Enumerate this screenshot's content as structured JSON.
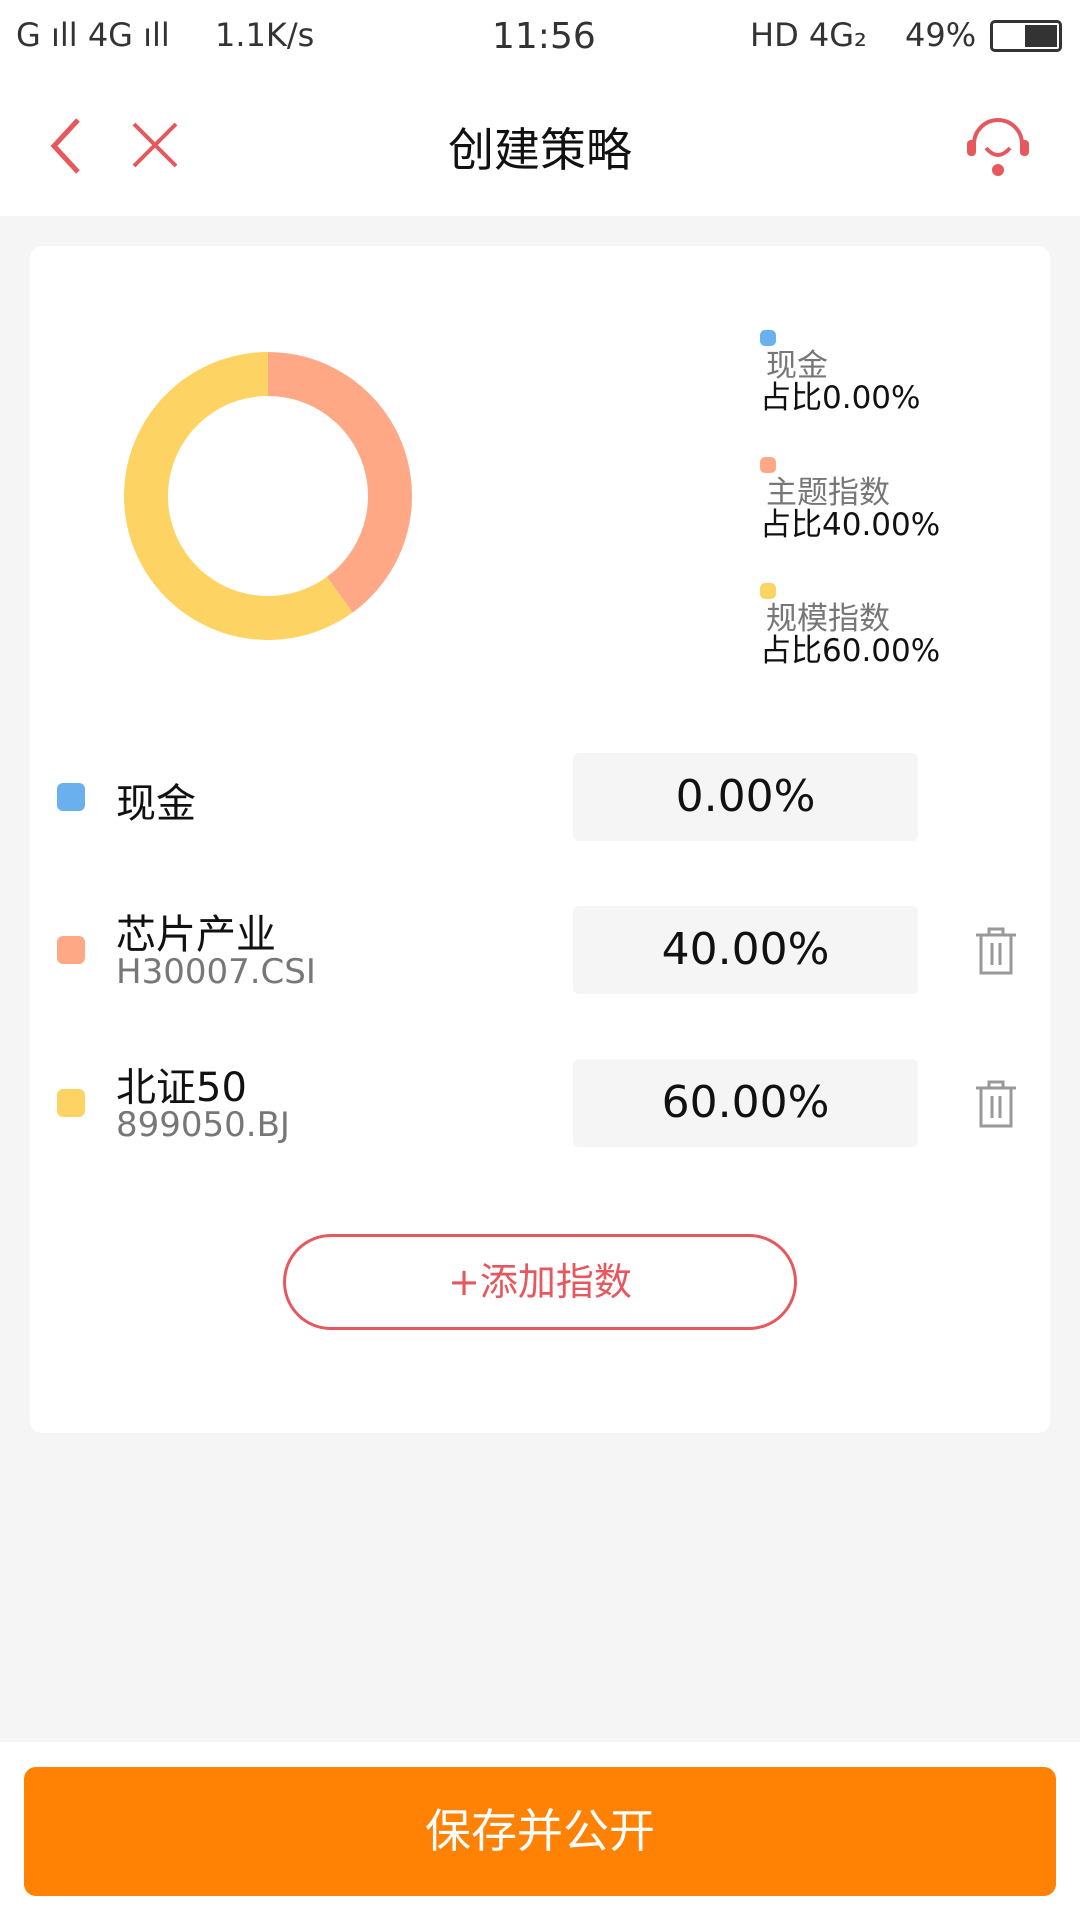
{
  "status_bar": {
    "left": "G ıll 4G ıll",
    "speed": "1.1K/s",
    "time": "11:56",
    "right": "HD 4G₂",
    "battery": "49%"
  },
  "header": {
    "title": "创建策略"
  },
  "colors": {
    "cash": "#6ab0ee",
    "theme": "#ffa886",
    "scale": "#fdd464",
    "accent": "#e6585d",
    "primary": "#ff8204"
  },
  "chart_data": {
    "type": "pie",
    "variant": "donut",
    "categories": [
      "现金",
      "主题指数",
      "规模指数"
    ],
    "values": [
      0,
      40,
      60
    ],
    "legend_placement": "right"
  },
  "legend": [
    {
      "name": "现金",
      "ratio": "占比0.00%"
    },
    {
      "name": "主题指数",
      "ratio": "占比40.00%"
    },
    {
      "name": "规模指数",
      "ratio": "占比60.00%"
    }
  ],
  "rows": [
    {
      "name": "现金",
      "code": "",
      "value": "0.00%"
    },
    {
      "name": "芯片产业",
      "code": "H30007.CSI",
      "value": "40.00%"
    },
    {
      "name": "北证50",
      "code": "899050.BJ",
      "value": "60.00%"
    }
  ],
  "add_button": "+添加指数",
  "save_button": "保存并公开"
}
